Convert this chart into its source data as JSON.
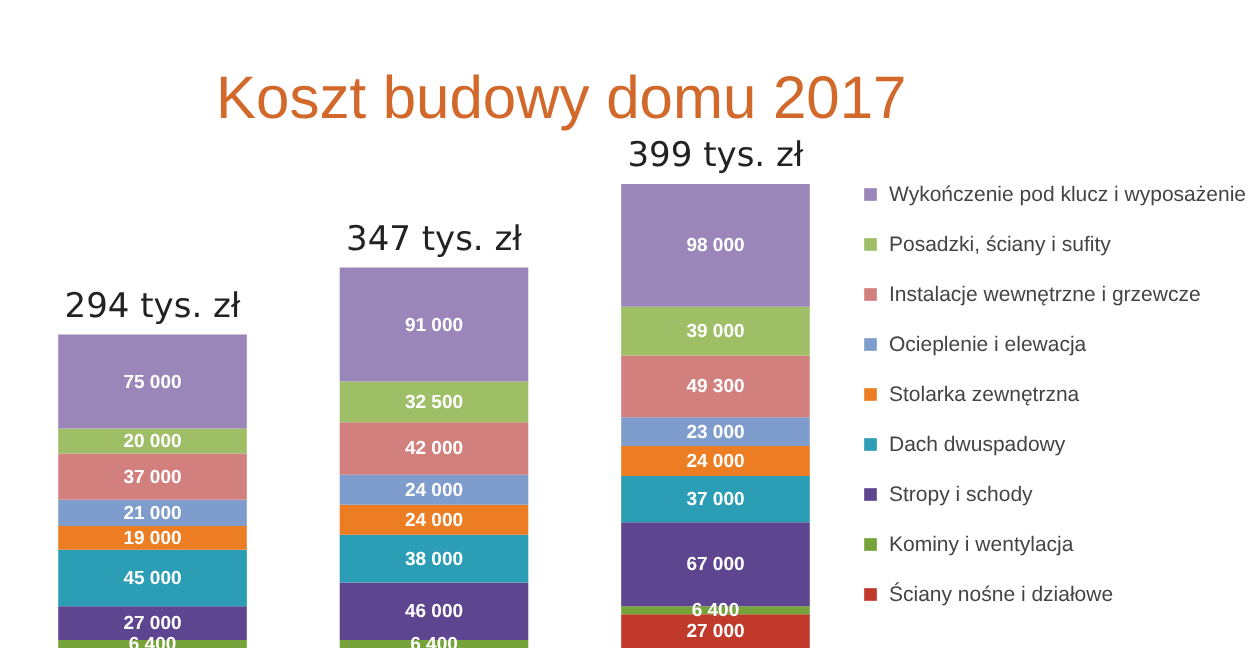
{
  "chart_data": {
    "type": "bar",
    "stacked": true,
    "title": "Koszt budowy domu 2017",
    "categories": [
      null,
      null,
      null
    ],
    "annotations": [
      "294 tys. zł",
      "347 tys. zł",
      "399 tys. zł"
    ],
    "legend": "right",
    "series": [
      {
        "name": "Ściany nośne i działowe",
        "color": "#c0392b",
        "values": [
          null,
          null,
          27000
        ],
        "value_labels": [
          null,
          null,
          "27 000"
        ]
      },
      {
        "name": "Kominy i wentylacja",
        "color": "#77a33b",
        "values": [
          6400,
          6400,
          6400
        ],
        "value_labels": [
          "6 400",
          "6 400",
          "6 400"
        ]
      },
      {
        "name": "Stropy i schody",
        "color": "#5e4590",
        "values": [
          27000,
          46000,
          67000
        ],
        "value_labels": [
          "27 000",
          "46 000",
          "67 000"
        ]
      },
      {
        "name": "Dach dwuspadowy",
        "color": "#2b9db5",
        "values": [
          45000,
          38000,
          37000
        ],
        "value_labels": [
          "45 000",
          "38 000",
          "37 000"
        ]
      },
      {
        "name": "Stolarka zewnętrzna",
        "color": "#ec7d23",
        "values": [
          19000,
          24000,
          24000
        ],
        "value_labels": [
          "19 000",
          "24 000",
          "24 000"
        ]
      },
      {
        "name": "Ocieplenie i elewacja",
        "color": "#7f9dcc",
        "values": [
          21000,
          24000,
          23000
        ],
        "value_labels": [
          "21 000",
          "24 000",
          "23 000"
        ]
      },
      {
        "name": "Instalacje wewnętrzne i grzewcze",
        "color": "#d2807e",
        "values": [
          37000,
          42000,
          49300
        ],
        "value_labels": [
          "37 000",
          "42 000",
          "49 300"
        ]
      },
      {
        "name": "Posadzki, ściany i sufity",
        "color": "#9fbf67",
        "values": [
          20000,
          32500,
          39000
        ],
        "value_labels": [
          "20 000",
          "32 500",
          "39 000"
        ]
      },
      {
        "name": "Wykończenie pod klucz i wyposażenie",
        "color": "#9a86b8",
        "values": [
          75000,
          91000,
          98000
        ],
        "value_labels": [
          "75 000",
          "91 000",
          "98 000"
        ]
      }
    ]
  }
}
